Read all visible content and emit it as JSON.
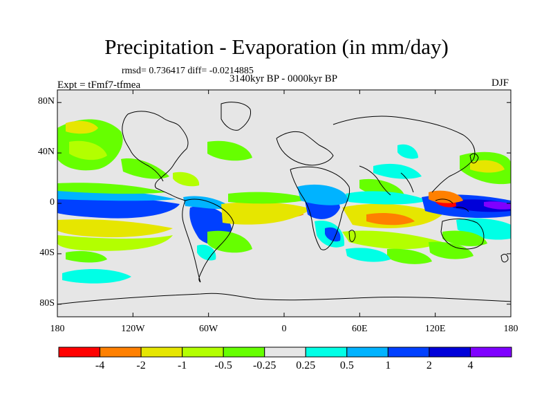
{
  "title": "Precipitation - Evaporation (in mm/day)",
  "stats": "rmsd= 0.736417 diff= -0.0214885",
  "period": "3140kyr BP - 0000kyr BP",
  "experiment": "Expt = tFmf7-tfmea",
  "season": "DJF",
  "lat_ticks": [
    {
      "lat": 80,
      "label": "80N"
    },
    {
      "lat": 40,
      "label": "40N"
    },
    {
      "lat": 0,
      "label": "0"
    },
    {
      "lat": -40,
      "label": "40S"
    },
    {
      "lat": -80,
      "label": "80S"
    }
  ],
  "lon_ticks": [
    {
      "lon": -180,
      "label": "180"
    },
    {
      "lon": -120,
      "label": "120W"
    },
    {
      "lon": -60,
      "label": "60W"
    },
    {
      "lon": 0,
      "label": "0"
    },
    {
      "lon": 60,
      "label": "60E"
    },
    {
      "lon": 120,
      "label": "120E"
    },
    {
      "lon": 180,
      "label": "180"
    }
  ],
  "colorbar": {
    "colors": [
      "#ff0000",
      "#ff8000",
      "#e6e600",
      "#b3ff00",
      "#66ff00",
      "#e6e6e6",
      "#00ffe6",
      "#00b3ff",
      "#0040ff",
      "#0000d9",
      "#7f00ff"
    ],
    "labels": [
      "-4",
      "-2",
      "-1",
      "-0.5",
      "-0.25",
      "0.25",
      "0.5",
      "1",
      "2",
      "4"
    ]
  },
  "colors": {
    "background": "#e6e6e6",
    "coastline": "#000000"
  }
}
